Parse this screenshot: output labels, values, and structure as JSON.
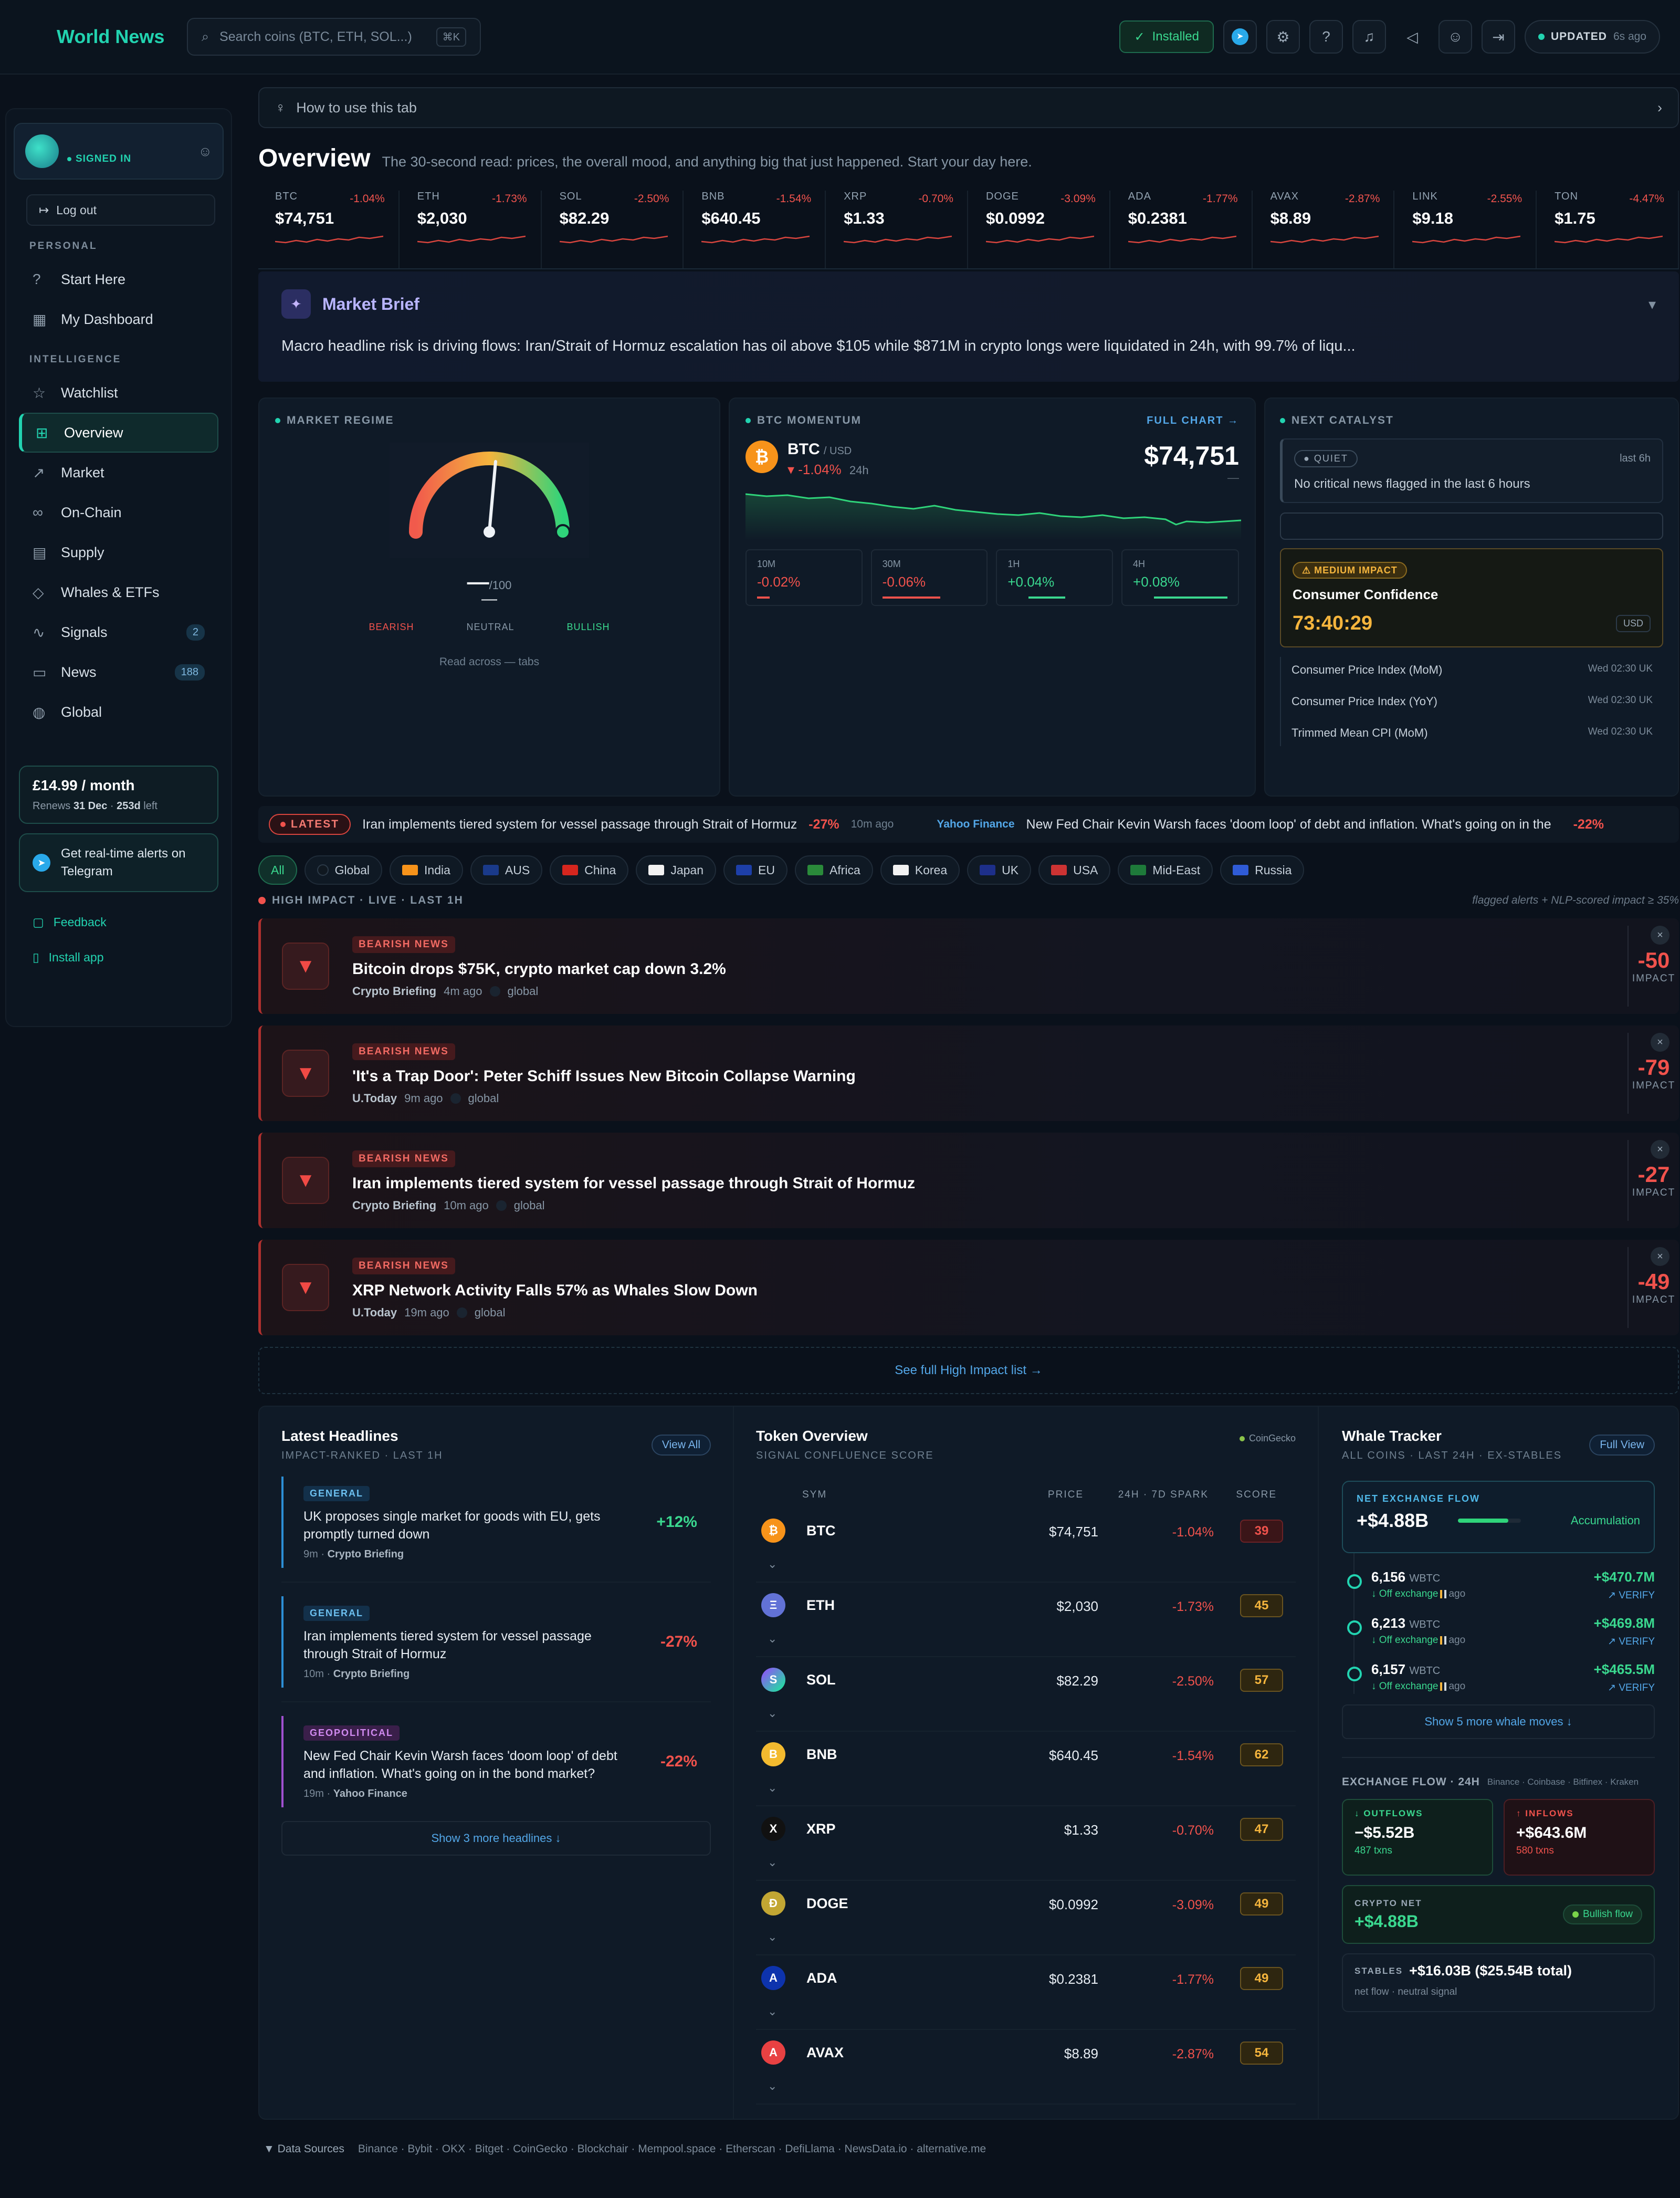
{
  "topbar": {
    "logo": "World News",
    "search_placeholder": "Search coins (BTC, ETH, SOL...)",
    "search_shortcut": "⌘K",
    "installed_label": "Installed",
    "updated_label": "UPDATED",
    "updated_ago": "6s ago"
  },
  "sidebar": {
    "user_status": "SIGNED IN",
    "logout_label": "Log out",
    "section_personal": "PERSONAL",
    "personal_items": [
      {
        "label": "Start Here",
        "icon": "help-circle-icon"
      },
      {
        "label": "My Dashboard",
        "icon": "dashboard-icon"
      }
    ],
    "section_intelligence": "INTELLIGENCE",
    "intel_items": [
      {
        "label": "Watchlist",
        "icon": "star-icon",
        "badge": ""
      },
      {
        "label": "Overview",
        "icon": "grid-icon",
        "badge": "",
        "active": true
      },
      {
        "label": "Market",
        "icon": "trending-icon",
        "badge": ""
      },
      {
        "label": "On-Chain",
        "icon": "link-icon",
        "badge": ""
      },
      {
        "label": "Supply",
        "icon": "table-icon",
        "badge": ""
      },
      {
        "label": "Whales & ETFs",
        "icon": "shield-icon",
        "badge": ""
      },
      {
        "label": "Signals",
        "icon": "pulse-icon",
        "badge": "2"
      },
      {
        "label": "News",
        "icon": "newspaper-icon",
        "badge": "188"
      },
      {
        "label": "Global",
        "icon": "globe-icon",
        "badge": ""
      }
    ],
    "plan_price": "£14.99 / month",
    "plan_renews_prefix": "Renews",
    "plan_renews_date": "31 Dec",
    "plan_left": "253d",
    "plan_left_suffix": "left",
    "telegram_label": "Get real-time alerts on Telegram",
    "feedback_label": "Feedback",
    "install_label": "Install app"
  },
  "main": {
    "howto": "How to use this tab",
    "title": "Overview",
    "subtitle": "The 30-second read: prices, the overall mood, and anything big that just happened. Start your day here.",
    "tickers": [
      {
        "sym": "BTC",
        "chg": "-1.04%",
        "price": "$74,751"
      },
      {
        "sym": "ETH",
        "chg": "-1.73%",
        "price": "$2,030"
      },
      {
        "sym": "SOL",
        "chg": "-2.50%",
        "price": "$82.29"
      },
      {
        "sym": "BNB",
        "chg": "-1.54%",
        "price": "$640.45"
      },
      {
        "sym": "XRP",
        "chg": "-0.70%",
        "price": "$1.33"
      },
      {
        "sym": "DOGE",
        "chg": "-3.09%",
        "price": "$0.0992"
      },
      {
        "sym": "ADA",
        "chg": "-1.77%",
        "price": "$0.2381"
      },
      {
        "sym": "AVAX",
        "chg": "-2.87%",
        "price": "$8.89"
      },
      {
        "sym": "LINK",
        "chg": "-2.55%",
        "price": "$9.18"
      },
      {
        "sym": "TON",
        "chg": "-4.47%",
        "price": "$1.75"
      }
    ],
    "brief_title": "Market Brief",
    "brief_text": "Macro headline risk is driving flows: Iran/Strait of Hormuz escalation has oil above $105 while $871M in crypto longs were liquidated in 24h, with 99.7% of liqu...",
    "regime": {
      "label": "MARKET REGIME",
      "score": "—",
      "score_max": "/100",
      "score_sub": "—",
      "bearish": "BEARISH",
      "neutral": "NEUTRAL",
      "bullish": "BULLISH",
      "read_across": "Read across — tabs"
    },
    "momentum": {
      "label": "BTC MOMENTUM",
      "full_chart": "FULL CHART →",
      "pair": "BTC",
      "quote": "/ USD",
      "change": "▾ -1.04%",
      "period": "24h",
      "price": "$74,751",
      "price_sub": "—",
      "windows": [
        {
          "label": "10M",
          "value": "-0.02%"
        },
        {
          "label": "30M",
          "value": "-0.06%"
        },
        {
          "label": "1H",
          "value": "+0.04%"
        },
        {
          "label": "4H",
          "value": "+0.08%"
        }
      ]
    },
    "catalyst": {
      "label": "NEXT CATALYST",
      "quiet_tag": "QUIET",
      "quiet_window": "last 6h",
      "quiet_text": "No critical news flagged in the last 6 hours",
      "impact_tag": "⚠ MEDIUM IMPACT",
      "event": "Consumer Confidence",
      "countdown": "73:40:29",
      "currency": "USD",
      "upcoming": [
        {
          "name": "Consumer Price Index (MoM)",
          "time": "Wed 02:30 UK"
        },
        {
          "name": "Consumer Price Index (YoY)",
          "time": "Wed 02:30 UK"
        },
        {
          "name": "Trimmed Mean CPI (MoM)",
          "time": "Wed 02:30 UK"
        }
      ]
    },
    "latest": {
      "label": "LATEST",
      "items": [
        {
          "source": "",
          "text": "Iran implements tiered system for vessel passage through Strait of Hormuz",
          "pct": "-27%",
          "ago": "10m ago"
        },
        {
          "source": "Yahoo Finance",
          "text": "New Fed Chair Kevin Warsh faces 'doom loop' of debt and inflation. What's going on in the",
          "pct": "-22%",
          "ago": ""
        }
      ]
    },
    "regions": [
      "All",
      "Global",
      "India",
      "AUS",
      "China",
      "Japan",
      "EU",
      "Africa",
      "Korea",
      "UK",
      "USA",
      "Mid-East",
      "Russia"
    ],
    "high_impact_label": "HIGH IMPACT · LIVE · LAST 1H",
    "high_impact_note": "flagged alerts + NLP-scored impact ≥ 35%",
    "alerts": [
      {
        "tag": "BEARISH NEWS",
        "title": "Bitcoin drops $75K, crypto market cap down 3.2%",
        "source": "Crypto Briefing",
        "ago": "4m ago",
        "region": "global",
        "impact": "-50",
        "impact_label": "IMPACT"
      },
      {
        "tag": "BEARISH NEWS",
        "title": "'It's a Trap Door': Peter Schiff Issues New Bitcoin Collapse Warning",
        "source": "U.Today",
        "ago": "9m ago",
        "region": "global",
        "impact": "-79",
        "impact_label": "IMPACT"
      },
      {
        "tag": "BEARISH NEWS",
        "title": "Iran implements tiered system for vessel passage through Strait of Hormuz",
        "source": "Crypto Briefing",
        "ago": "10m ago",
        "region": "global",
        "impact": "-27",
        "impact_label": "IMPACT"
      },
      {
        "tag": "BEARISH NEWS",
        "title": "XRP Network Activity Falls 57% as Whales Slow Down",
        "source": "U.Today",
        "ago": "19m ago",
        "region": "global",
        "impact": "-49",
        "impact_label": "IMPACT"
      }
    ],
    "see_full": "See full High Impact list →",
    "headlines": {
      "title": "Latest Headlines",
      "sub": "IMPACT-RANKED · LAST 1H",
      "view_all": "View All",
      "items": [
        {
          "tag": "GENERAL",
          "text": "UK proposes single market for goods with EU, gets promptly turned down",
          "ago": "9m",
          "source": "Crypto Briefing",
          "pct": "+12%"
        },
        {
          "tag": "GENERAL",
          "text": "Iran implements tiered system for vessel passage through Strait of Hormuz",
          "ago": "10m",
          "source": "Crypto Briefing",
          "pct": "-27%"
        },
        {
          "tag": "GEOPOLITICAL",
          "text": "New Fed Chair Kevin Warsh faces 'doom loop' of debt and inflation. What's going on in the bond market?",
          "ago": "19m",
          "source": "Yahoo Finance",
          "pct": "-22%"
        }
      ],
      "more": "Show 3 more headlines ↓"
    },
    "tokens": {
      "title": "Token Overview",
      "sub": "SIGNAL CONFLUENCE SCORE",
      "source": "CoinGecko",
      "cols": [
        "SYM",
        "PRICE",
        "24H · 7D SPARK",
        "SCORE"
      ],
      "rows": [
        {
          "sym": "BTC",
          "logo": "₿",
          "price": "$74,751",
          "chg": "-1.04%",
          "score": "39"
        },
        {
          "sym": "ETH",
          "logo": "Ξ",
          "price": "$2,030",
          "chg": "-1.73%",
          "score": "45"
        },
        {
          "sym": "SOL",
          "logo": "S",
          "price": "$82.29",
          "chg": "-2.50%",
          "score": "57"
        },
        {
          "sym": "BNB",
          "logo": "B",
          "price": "$640.45",
          "chg": "-1.54%",
          "score": "62"
        },
        {
          "sym": "XRP",
          "logo": "X",
          "price": "$1.33",
          "chg": "-0.70%",
          "score": "47"
        },
        {
          "sym": "DOGE",
          "logo": "Ð",
          "price": "$0.0992",
          "chg": "-3.09%",
          "score": "49"
        },
        {
          "sym": "ADA",
          "logo": "A",
          "price": "$0.2381",
          "chg": "-1.77%",
          "score": "49"
        },
        {
          "sym": "AVAX",
          "logo": "A",
          "price": "$8.89",
          "chg": "-2.87%",
          "score": "54"
        }
      ]
    },
    "whales": {
      "title": "Whale Tracker",
      "sub": "ALL COINS · LAST 24H · EX-STABLES",
      "full_view": "Full View",
      "net_label": "NET EXCHANGE FLOW",
      "net_value": "+$4.88B",
      "net_tag": "Accumulation",
      "moves": [
        {
          "amount": "6,156",
          "unit": "WBTC",
          "dir": "↓ Off exchange",
          "ago": "ago",
          "usd": "+$470.7M",
          "verify": "↗ VERIFY"
        },
        {
          "amount": "6,213",
          "unit": "WBTC",
          "dir": "↓ Off exchange",
          "ago": "ago",
          "usd": "+$469.8M",
          "verify": "↗ VERIFY"
        },
        {
          "amount": "6,157",
          "unit": "WBTC",
          "dir": "↓ Off exchange",
          "ago": "ago",
          "usd": "+$465.5M",
          "verify": "↗ VERIFY"
        }
      ],
      "more": "Show 5 more whale moves ↓",
      "exflow_label": "EXCHANGE FLOW · 24H",
      "exflow_sources": "Binance · Coinbase · Bitfinex · Kraken",
      "outflows_label": "↓ OUTFLOWS",
      "outflows_value": "−$5.52B",
      "outflows_txns": "487 txns",
      "inflows_label": "↑ INFLOWS",
      "inflows_value": "+$643.6M",
      "inflows_txns": "580 txns",
      "crypto_net_label": "CRYPTO NET",
      "crypto_net_value": "+$4.88B",
      "crypto_net_tag": "Bullish flow",
      "stables_label": "STABLES",
      "stables_value": "+$16.03B ($25.54B total)",
      "stables_note": "net flow · neutral signal"
    },
    "footer": {
      "label": "▼ Data Sources",
      "sources": "Binance · Bybit · OKX · Bitget · CoinGecko · Blockchair · Mempool.space · Etherscan · DefiLlama · NewsData.io · alternative.me"
    }
  },
  "colors": {
    "accent": "#22d3b0",
    "negative": "#f0524c",
    "positive": "#3ad88f",
    "warning": "#f5b53d"
  }
}
